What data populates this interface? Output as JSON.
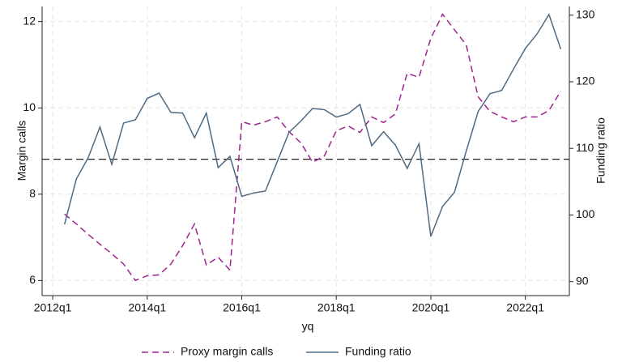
{
  "chart_data": {
    "type": "line",
    "x_label": "yq",
    "y_label": "Margin calls",
    "y2_label": "Funding ratio",
    "x": [
      "2012q2",
      "2012q3",
      "2012q4",
      "2013q1",
      "2013q2",
      "2013q3",
      "2013q4",
      "2014q1",
      "2014q2",
      "2014q3",
      "2014q4",
      "2015q1",
      "2015q2",
      "2015q3",
      "2015q4",
      "2016q1",
      "2016q2",
      "2016q3",
      "2016q4",
      "2017q1",
      "2017q2",
      "2017q3",
      "2017q4",
      "2018q1",
      "2018q2",
      "2018q3",
      "2018q4",
      "2019q1",
      "2019q2",
      "2019q3",
      "2019q4",
      "2020q1",
      "2020q2",
      "2020q3",
      "2020q4",
      "2021q1",
      "2021q2",
      "2021q3",
      "2021q4",
      "2022q1",
      "2022q2",
      "2022q3",
      "2022q4"
    ],
    "series": [
      {
        "name": "Proxy margin calls",
        "color": "#a0228f",
        "dash": true,
        "values": [
          7.54,
          7.31,
          7.07,
          6.84,
          6.62,
          6.38,
          6.0,
          6.11,
          6.13,
          6.38,
          6.81,
          7.31,
          6.36,
          6.54,
          6.24,
          9.68,
          9.6,
          9.68,
          9.79,
          9.45,
          9.19,
          8.74,
          8.89,
          9.47,
          9.58,
          9.43,
          9.79,
          9.66,
          9.86,
          10.8,
          10.71,
          11.61,
          12.17,
          11.81,
          11.46,
          10.26,
          9.92,
          9.79,
          9.68,
          9.79,
          9.79,
          9.94,
          10.39
        ]
      },
      {
        "name": "Funding ratio",
        "color": "#4e6a82",
        "dash": false,
        "axis": "y2",
        "values": [
          98.6,
          105.4,
          108.6,
          113.2,
          107.6,
          113.8,
          114.3,
          117.5,
          118.3,
          115.4,
          115.3,
          111.6,
          115.3,
          107.1,
          108.8,
          102.8,
          103.3,
          103.6,
          108.0,
          112.4,
          114.1,
          116.0,
          115.8,
          114.7,
          115.2,
          116.6,
          110.4,
          112.5,
          110.5,
          107.0,
          110.7,
          96.8,
          101.3,
          103.4,
          109.6,
          115.5,
          118.2,
          118.7,
          121.9,
          125.0,
          127.2,
          130.1,
          124.9
        ]
      }
    ],
    "hline": 8.81,
    "xlim": [
      "2011q4",
      "2023q1"
    ],
    "xticks": [
      "2012q1",
      "2014q1",
      "2016q1",
      "2018q1",
      "2020q1",
      "2022q1"
    ],
    "ylim": [
      5.65,
      12.35
    ],
    "yticks": [
      6,
      8,
      10,
      12
    ],
    "y2lim": [
      87.9,
      131.3
    ],
    "y2ticks": [
      90,
      100,
      110,
      120,
      130
    ],
    "grid": true,
    "legend": "bottom"
  }
}
